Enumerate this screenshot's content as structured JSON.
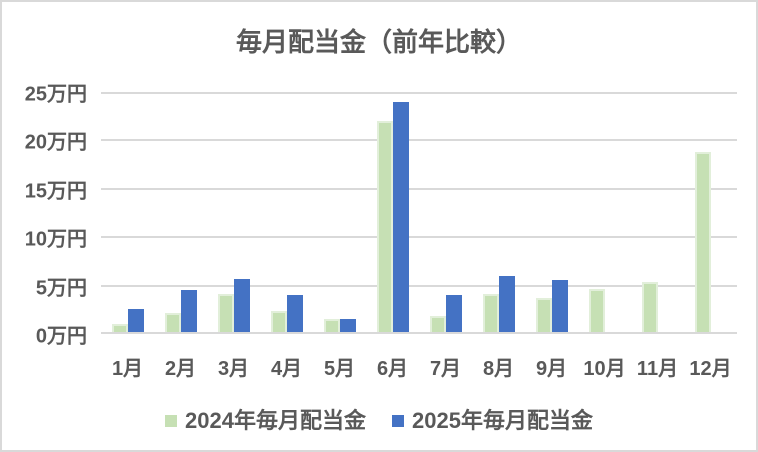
{
  "chart_data": {
    "type": "bar",
    "title": "毎月配当金（前年比較）",
    "categories": [
      "1月",
      "2月",
      "3月",
      "4月",
      "5月",
      "6月",
      "7月",
      "8月",
      "9月",
      "10月",
      "11月",
      "12月"
    ],
    "series": [
      {
        "name": "2024年毎月配当金",
        "color": "#c6e0b4",
        "border_color": "#e2efda",
        "values": [
          1.0,
          2.2,
          4.1,
          2.4,
          1.5,
          22.0,
          1.9,
          4.1,
          3.7,
          4.6,
          5.4,
          18.8
        ]
      },
      {
        "name": "2025年毎月配当金",
        "color": "#4472c4",
        "border_color": null,
        "values": [
          2.6,
          4.5,
          5.7,
          4.0,
          1.6,
          24.0,
          4.0,
          6.0,
          5.6,
          null,
          null,
          null
        ]
      }
    ],
    "unit": "万円",
    "ylim": [
      0,
      25
    ],
    "ytick_step": 5,
    "yticks": [
      "25万円",
      "20万円",
      "15万円",
      "10万円",
      "5万円",
      "0万円"
    ],
    "grid": true,
    "legend_position": "bottom"
  },
  "colors": {
    "text": "#595959",
    "gridline": "#d9d9d9",
    "chart_border": "#d9d9d9",
    "background": "#ffffff"
  }
}
